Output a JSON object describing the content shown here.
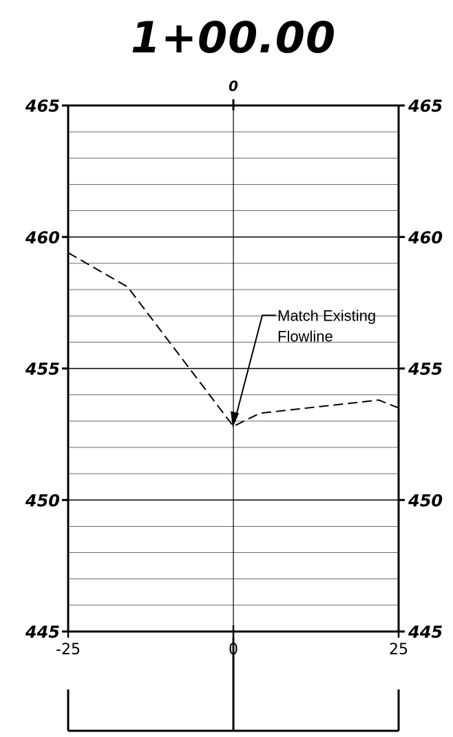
{
  "title": "1+00.00",
  "chart_data": {
    "type": "line",
    "title": "1+00.00",
    "xlabel": "",
    "ylabel": "",
    "xlim": [
      -25,
      25
    ],
    "ylim": [
      445,
      465
    ],
    "x_ticks": [
      "-25",
      "0",
      "25"
    ],
    "top_tick": "0",
    "y_ticks": [
      465,
      460,
      455,
      450,
      445
    ],
    "grid": true,
    "series": [
      {
        "style": "dashed",
        "x": [
          -25,
          -16,
          0,
          4,
          22,
          25
        ],
        "y": [
          459.4,
          458.1,
          452.8,
          453.3,
          453.8,
          453.5
        ]
      }
    ],
    "annotations": [
      {
        "lines": [
          "Match Existing",
          "Flowline"
        ],
        "x": 0,
        "y": 452.8
      }
    ]
  }
}
